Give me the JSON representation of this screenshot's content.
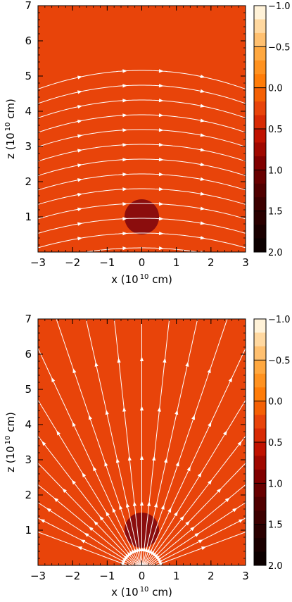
{
  "chart_data": [
    {
      "type": "heatmap",
      "panel": "top",
      "field_pattern": "horizontal-arcs",
      "background_color": "#e8440a",
      "body_color": "#8b0d0d",
      "line_color": "#ffffff",
      "body": {
        "x": 0,
        "z": 1,
        "r": 0.5
      },
      "xlim": [
        -3,
        3
      ],
      "ylim": [
        0,
        7
      ],
      "xticks": [
        -3,
        -2,
        -1,
        0,
        1,
        2,
        3
      ],
      "yticks": [
        1,
        2,
        3,
        4,
        5,
        6,
        7
      ],
      "xlabel_prefix": "x (10",
      "xlabel_exp": "10",
      "xlabel_suffix": " cm)",
      "ylabel_prefix": "z (10",
      "ylabel_exp": "10",
      "ylabel_suffix": " cm)",
      "colorbar": {
        "range": [
          -1.0,
          2.0
        ],
        "labels": [
          "-1.0",
          "-0.5",
          "0.0",
          "0.5",
          "1.0",
          "1.5",
          "2.0"
        ],
        "label_values": [
          -1.0,
          -0.5,
          0.0,
          0.5,
          1.0,
          1.5,
          2.0
        ],
        "colors": [
          "#fff2d8",
          "#ffd8a0",
          "#ffc070",
          "#ffa840",
          "#ff9220",
          "#ff7c08",
          "#f46004",
          "#e8440a",
          "#d82a04",
          "#c01200",
          "#a00800",
          "#800000",
          "#680000",
          "#500000",
          "#3c0000",
          "#2a0000",
          "#1a0000",
          "#0c0000"
        ]
      }
    },
    {
      "type": "heatmap",
      "panel": "bottom",
      "field_pattern": "radial-from-origin",
      "background_color": "#e8440a",
      "body_color": "#8b0d0d",
      "line_color": "#ffffff",
      "body": {
        "x": 0,
        "z": 1,
        "r": 0.5
      },
      "xlim": [
        -3,
        3
      ],
      "ylim": [
        0,
        7
      ],
      "xticks": [
        -3,
        -2,
        -1,
        0,
        1,
        2,
        3
      ],
      "yticks": [
        1,
        2,
        3,
        4,
        5,
        6,
        7
      ],
      "xlabel_prefix": "x (10",
      "xlabel_exp": "10",
      "xlabel_suffix": " cm)",
      "ylabel_prefix": "z (10",
      "ylabel_exp": "10",
      "ylabel_suffix": " cm)",
      "colorbar": {
        "range": [
          -1.0,
          2.0
        ],
        "labels": [
          "-1.0",
          "-0.5",
          "0.0",
          "0.5",
          "1.0",
          "1.5",
          "2.0"
        ],
        "label_values": [
          -1.0,
          -0.5,
          0.0,
          0.5,
          1.0,
          1.5,
          2.0
        ],
        "colors": [
          "#fff2d8",
          "#ffd8a0",
          "#ffc070",
          "#ffa840",
          "#ff9220",
          "#ff7c08",
          "#f46004",
          "#e8440a",
          "#d82a04",
          "#c01200",
          "#a00800",
          "#800000",
          "#680000",
          "#500000",
          "#3c0000",
          "#2a0000",
          "#1a0000",
          "#0c0000"
        ]
      }
    }
  ]
}
